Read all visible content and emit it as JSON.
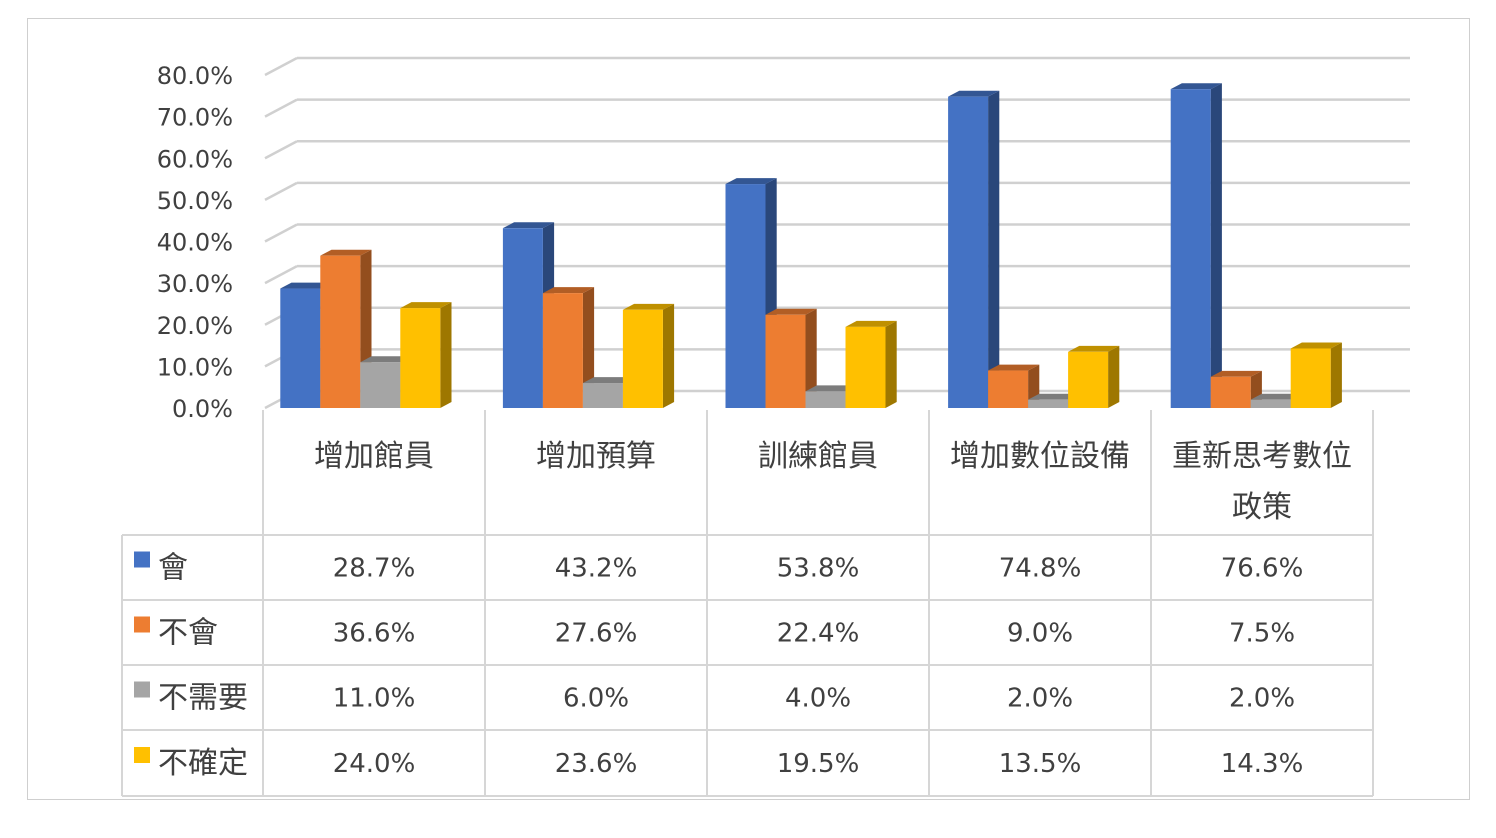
{
  "chart_data": {
    "type": "bar",
    "categories": [
      "增加館員",
      "增加預算",
      "訓練館員",
      "增加數位設備",
      "重新思考數位\n政策"
    ],
    "series": [
      {
        "name": "會",
        "values": [
          28.7,
          43.2,
          53.8,
          74.8,
          76.6
        ],
        "labels": [
          "28.7%",
          "43.2%",
          "53.8%",
          "74.8%",
          "76.6%"
        ],
        "color": "#4472c4"
      },
      {
        "name": "不會",
        "values": [
          36.6,
          27.6,
          22.4,
          9.0,
          7.5
        ],
        "labels": [
          "36.6%",
          "27.6%",
          "22.4%",
          "9.0%",
          "7.5%"
        ],
        "color": "#ed7d31"
      },
      {
        "name": "不需要",
        "values": [
          11.0,
          6.0,
          4.0,
          2.0,
          2.0
        ],
        "labels": [
          "11.0%",
          "6.0%",
          "4.0%",
          "2.0%",
          "2.0%"
        ],
        "color": "#a5a5a5"
      },
      {
        "name": "不確定",
        "values": [
          24.0,
          23.6,
          19.5,
          13.5,
          14.3
        ],
        "labels": [
          "24.0%",
          "23.6%",
          "19.5%",
          "13.5%",
          "14.3%"
        ],
        "color": "#ffc000"
      }
    ],
    "yticks": [
      "0.0%",
      "10.0%",
      "20.0%",
      "30.0%",
      "40.0%",
      "50.0%",
      "60.0%",
      "70.0%",
      "80.0%"
    ],
    "ylim": [
      0,
      80
    ],
    "grid": true,
    "style": "3d-clustered-column",
    "data_table": true
  }
}
